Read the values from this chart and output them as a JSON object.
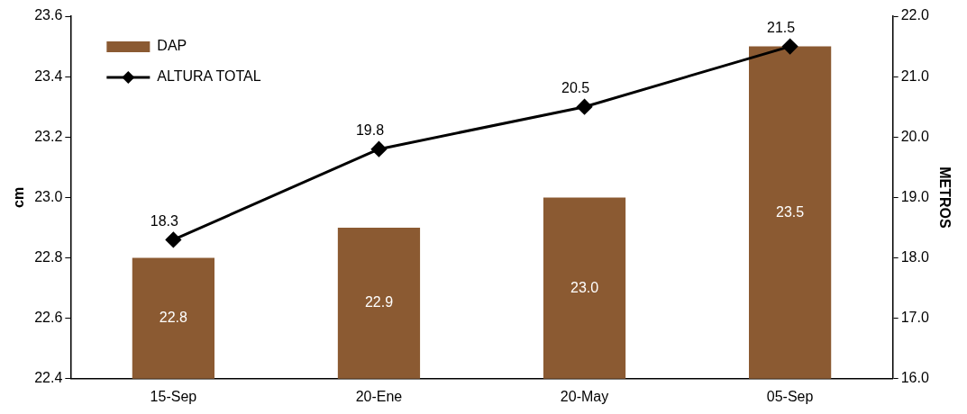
{
  "chart_data": {
    "type": "bar",
    "categories": [
      "15-Sep",
      "20-Ene",
      "20-May",
      "05-Sep"
    ],
    "series": [
      {
        "name": "DAP",
        "type": "bar",
        "color": "#8b5a32",
        "values": [
          22.8,
          22.9,
          23.0,
          23.5
        ],
        "value_labels": [
          "22.8",
          "22.9",
          "23.0",
          "23.5"
        ]
      },
      {
        "name": "ALTURA TOTAL",
        "type": "line",
        "axis": "y2",
        "color": "#000000",
        "values": [
          18.3,
          19.8,
          20.5,
          21.5
        ],
        "value_labels": [
          "18.3",
          "19.8",
          "20.5",
          "21.5"
        ]
      }
    ],
    "ylabel": "cm",
    "y2label": "METROS",
    "ylim": [
      22.4,
      23.6
    ],
    "yticks": [
      22.4,
      22.6,
      22.8,
      {
        "value": 23,
        "label": "23.0"
      },
      23.2,
      23.4,
      23.6
    ],
    "y2lim": [
      16,
      22
    ],
    "y2ticks": [
      {
        "value": 16,
        "label": "16.0"
      },
      {
        "value": 17,
        "label": "17.0"
      },
      {
        "value": 18,
        "label": "18.0"
      },
      {
        "value": 19,
        "label": "19.0"
      },
      {
        "value": 20,
        "label": "20.0"
      },
      {
        "value": 21,
        "label": "21.0"
      },
      {
        "value": 22,
        "label": "22.0"
      }
    ],
    "grid": false,
    "legend": "top left",
    "marker": "diamond",
    "line_style": "solid"
  }
}
